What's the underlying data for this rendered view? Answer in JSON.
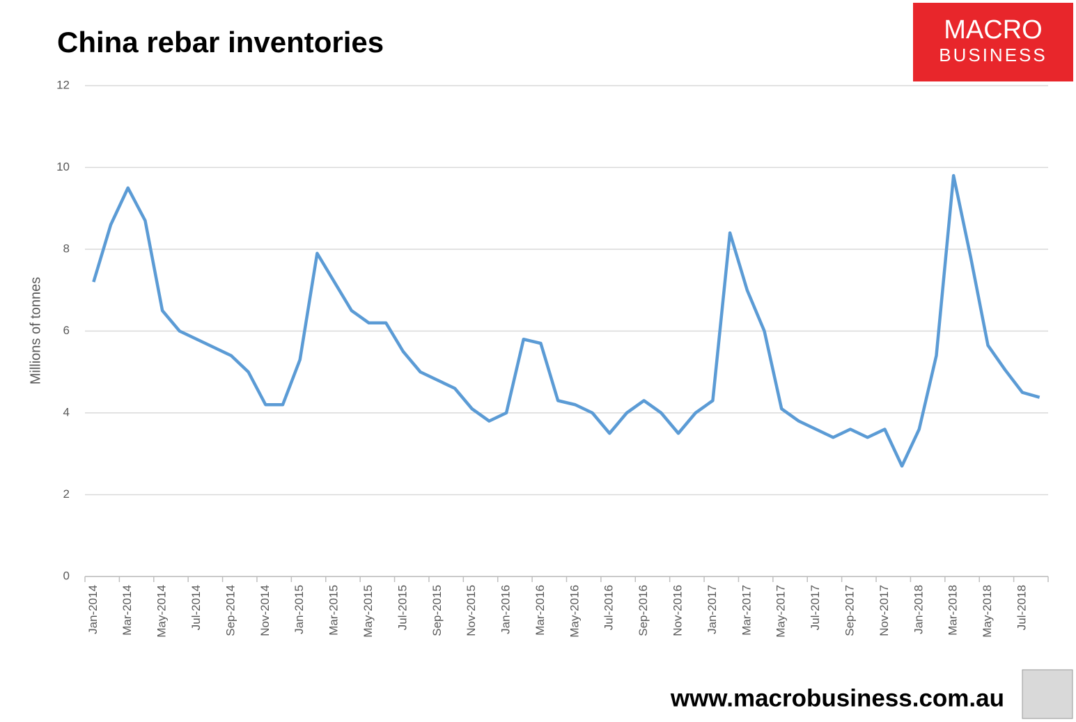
{
  "chart_data": {
    "type": "line",
    "title": "China rebar inventories",
    "y_label": "Millions of tonnes",
    "logo": {
      "line1": "MACRO",
      "line2": "BUSINESS"
    },
    "footer": "www.macrobusiness.com.au",
    "categories": [
      "Jan-2014",
      null,
      "Mar-2014",
      null,
      "May-2014",
      null,
      "Jul-2014",
      null,
      "Sep-2014",
      null,
      "Nov-2014",
      null,
      "Jan-2015",
      null,
      "Mar-2015",
      null,
      "May-2015",
      null,
      "Jul-2015",
      null,
      "Sep-2015",
      null,
      "Nov-2015",
      null,
      "Jan-2016",
      null,
      "Mar-2016",
      null,
      "May-2016",
      null,
      "Jul-2016",
      null,
      "Sep-2016",
      null,
      "Nov-2016",
      null,
      "Jan-2017",
      null,
      "Mar-2017",
      null,
      "May-2017",
      null,
      "Jul-2017",
      null,
      "Sep-2017",
      null,
      "Nov-2017",
      null,
      "Jan-2018",
      null,
      "Mar-2018",
      null,
      "May-2018",
      null,
      "Jul-2018",
      null
    ],
    "series": [
      {
        "name": "Rebar inventories",
        "color": "#5b9bd5",
        "values": [
          7.2,
          8.6,
          9.5,
          8.7,
          6.5,
          6.0,
          5.8,
          5.6,
          5.4,
          5.0,
          4.2,
          4.2,
          5.3,
          7.9,
          7.2,
          6.5,
          6.2,
          6.2,
          5.5,
          5.0,
          4.8,
          4.6,
          4.1,
          3.8,
          4.0,
          5.8,
          5.7,
          4.3,
          4.2,
          4.0,
          3.5,
          4.0,
          4.3,
          4.0,
          3.5,
          4.0,
          4.3,
          8.4,
          7.0,
          6.0,
          4.1,
          3.8,
          3.6,
          3.4,
          3.6,
          3.4,
          3.6,
          2.7,
          3.6,
          5.4,
          9.8,
          7.8,
          5.65,
          5.05,
          4.5,
          4.38
        ]
      }
    ],
    "ylim": [
      0,
      12
    ],
    "yticks": [
      0,
      2,
      4,
      6,
      8,
      10,
      12
    ],
    "grid": true
  }
}
